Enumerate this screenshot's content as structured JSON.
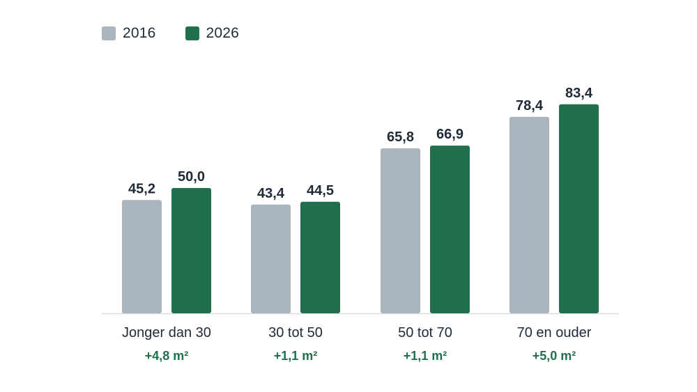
{
  "chart_data": {
    "type": "bar",
    "categories": [
      "Jonger dan 30",
      "30 tot 50",
      "50 tot 70",
      "70 en ouder"
    ],
    "series": [
      {
        "name": "2016",
        "values": [
          45.2,
          43.4,
          65.8,
          78.4
        ],
        "labels": [
          "45,2",
          "43,4",
          "65,8",
          "78,4"
        ],
        "color": "#a9b4bd"
      },
      {
        "name": "2026",
        "values": [
          50.0,
          44.5,
          66.9,
          83.4
        ],
        "labels": [
          "50,0",
          "44,5",
          "66,9",
          "83,4"
        ],
        "color": "#21704d"
      }
    ],
    "differences": [
      "+4,8 m²",
      "+1,1 m²",
      "+1,1 m²",
      "+5,0 m²"
    ],
    "ylim": [
      0,
      90
    ],
    "legend_position": "top-left",
    "grid": false,
    "colors": {
      "text": "#1f2a37",
      "difference": "#21704d",
      "baseline": "#d9dde1"
    }
  }
}
